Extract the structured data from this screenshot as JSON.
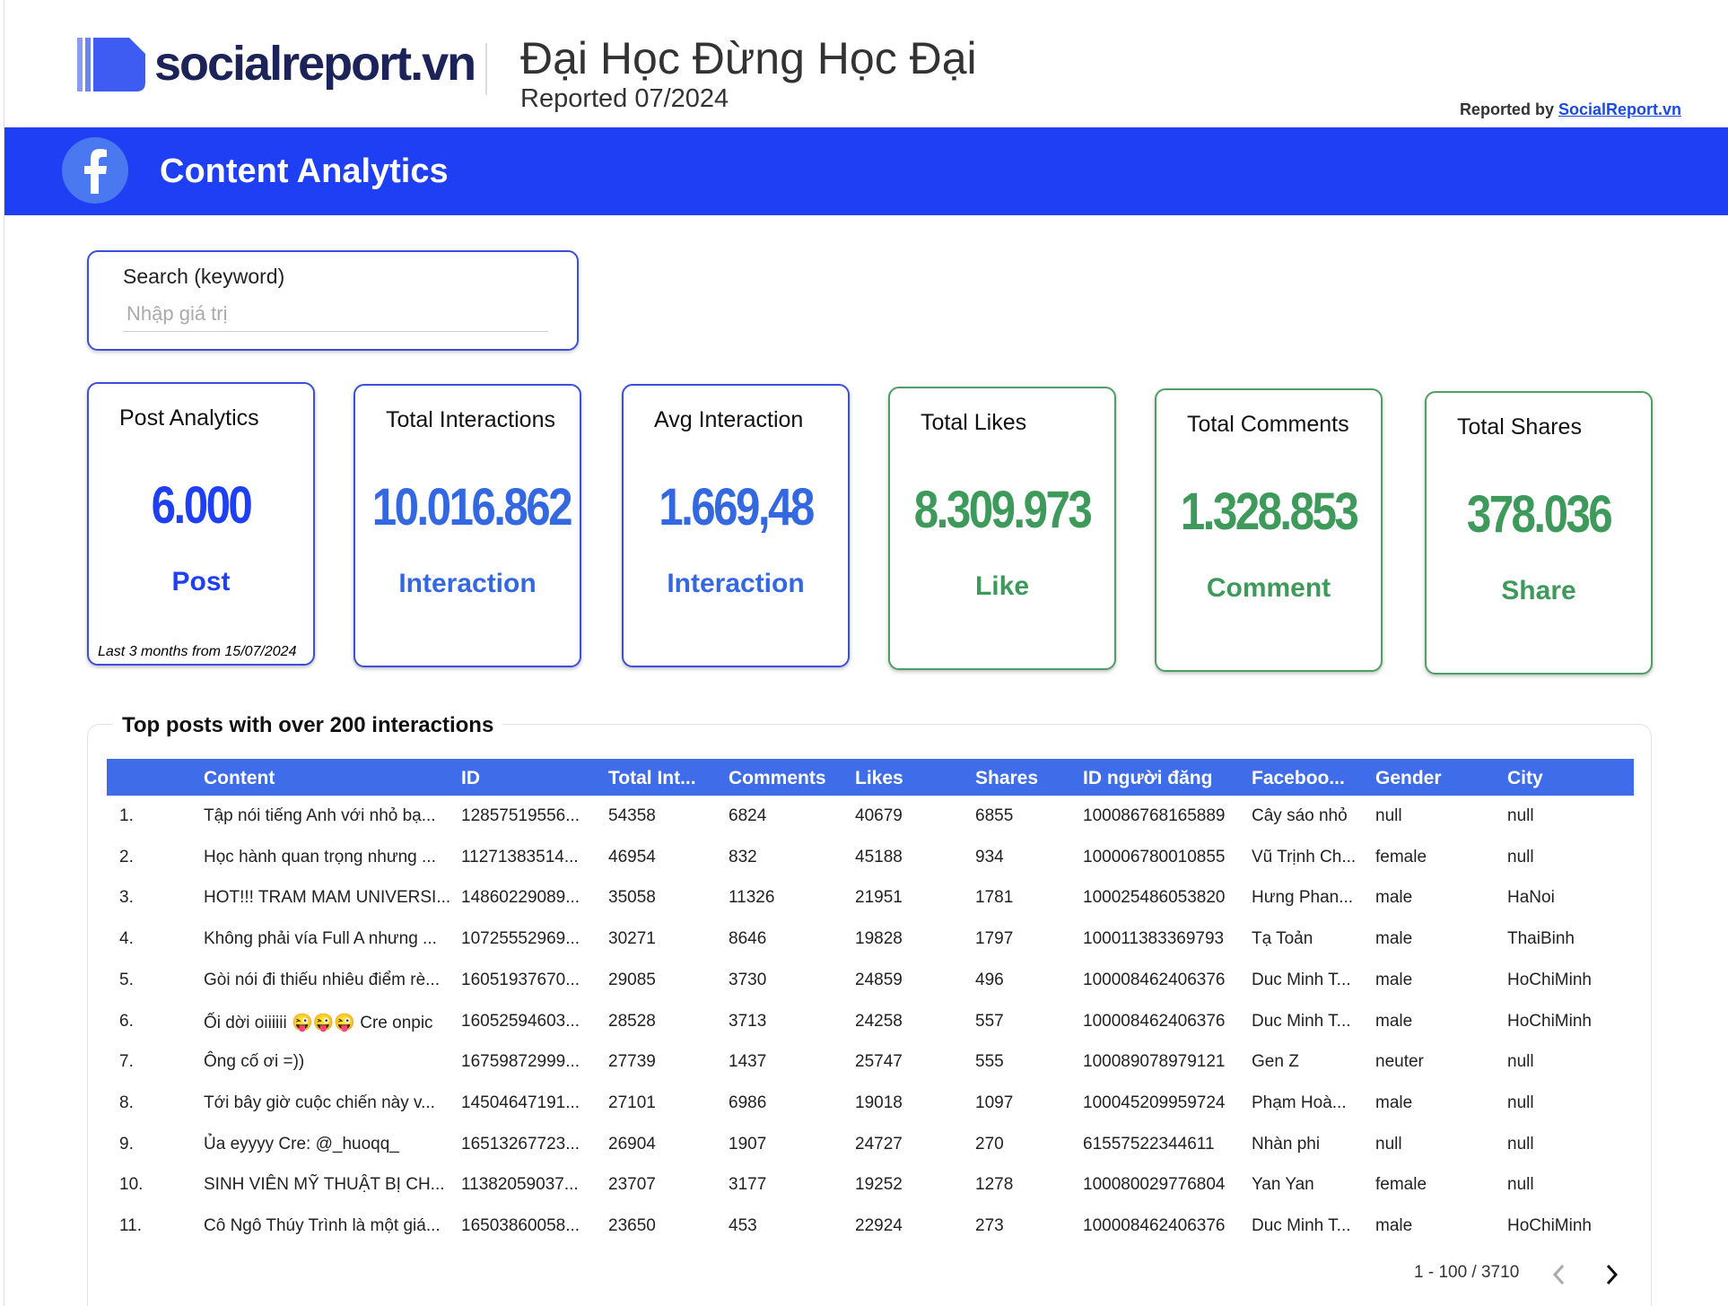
{
  "header": {
    "logo": "socialreport.vn",
    "title": "Đại Học Đừng Học Đại",
    "subtitle": "Reported 07/2024",
    "reported_by": "Reported by",
    "reported_by_link": "SocialReport.vn"
  },
  "banner": {
    "title": "Content Analytics"
  },
  "search": {
    "label": "Search (keyword)",
    "placeholder": "Nhập giá trị"
  },
  "kpis": [
    {
      "title": "Post Analytics",
      "value": "6.000",
      "unit": "Post",
      "note": "Last 3 months from 15/07/2024"
    },
    {
      "title": "Total Interactions",
      "value": "10.016.862",
      "unit": "Interaction"
    },
    {
      "title": "Avg Interaction",
      "value": "1.669,48",
      "unit": "Interaction"
    },
    {
      "title": "Total Likes",
      "value": "8.309.973",
      "unit": "Like"
    },
    {
      "title": "Total Comments",
      "value": "1.328.853",
      "unit": "Comment"
    },
    {
      "title": "Total Shares",
      "value": "378.036",
      "unit": "Share"
    }
  ],
  "table": {
    "title": "Top posts with over 200 interactions",
    "columns": [
      "Content",
      "ID",
      "Total Int...",
      "Comments",
      "Likes",
      "Shares",
      "ID người đăng",
      "Faceboo...",
      "Gender",
      "City"
    ],
    "rows": [
      [
        "1.",
        "Tập nói tiếng Anh với nhỏ bạ...",
        "12857519556...",
        "54358",
        "6824",
        "40679",
        "6855",
        "100086768165889",
        "Cây sáo nhỏ",
        "null",
        "null"
      ],
      [
        "2.",
        "Học hành quan trọng nhưng ...",
        "11271383514...",
        "46954",
        "832",
        "45188",
        "934",
        "100006780010855",
        "Vũ Trịnh Ch...",
        "female",
        "null"
      ],
      [
        "3.",
        "HOT!!! TRAM MAM UNIVERSI...",
        "14860229089...",
        "35058",
        "11326",
        "21951",
        "1781",
        "100025486053820",
        "Hưng Phan...",
        "male",
        "HaNoi"
      ],
      [
        "4.",
        "Không phải vía Full A nhưng ...",
        "10725552969...",
        "30271",
        "8646",
        "19828",
        "1797",
        "100011383369793",
        "Tạ Toản",
        "male",
        "ThaiBinh"
      ],
      [
        "5.",
        "Gòi nói đi thiếu nhiêu điểm rè...",
        "16051937670...",
        "29085",
        "3730",
        "24859",
        "496",
        "100008462406376",
        "Duc Minh T...",
        "male",
        "HoChiMinh"
      ],
      [
        "6.",
        "Ối dời oiiiiii 😜😜😜 Cre onpic",
        "16052594603...",
        "28528",
        "3713",
        "24258",
        "557",
        "100008462406376",
        "Duc Minh T...",
        "male",
        "HoChiMinh"
      ],
      [
        "7.",
        "Ông cố ơi =))",
        "16759872999...",
        "27739",
        "1437",
        "25747",
        "555",
        "100089078979121",
        "Gen Z",
        "neuter",
        "null"
      ],
      [
        "8.",
        "Tới bây giờ cuộc chiến này v...",
        "14504647191...",
        "27101",
        "6986",
        "19018",
        "1097",
        "100045209959724",
        "Phạm Hoà...",
        "male",
        "null"
      ],
      [
        "9.",
        "Ủa eyyyy Cre: @_huoqq_",
        "16513267723...",
        "26904",
        "1907",
        "24727",
        "270",
        "61557522344611",
        "Nhàn phi",
        "null",
        "null"
      ],
      [
        "10.",
        "SINH VIÊN MỸ THUẬT BỊ CH...",
        "11382059037...",
        "23707",
        "3177",
        "19252",
        "1278",
        "100080029776804",
        "Yan Yan",
        "female",
        "null"
      ],
      [
        "11.",
        "Cô Ngô Thúy Trình là một giá...",
        "16503860058...",
        "23650",
        "453",
        "22924",
        "273",
        "100008462406376",
        "Duc Minh T...",
        "male",
        "HoChiMinh"
      ]
    ]
  },
  "pagination": {
    "range": "1 - 100 / 3710"
  }
}
